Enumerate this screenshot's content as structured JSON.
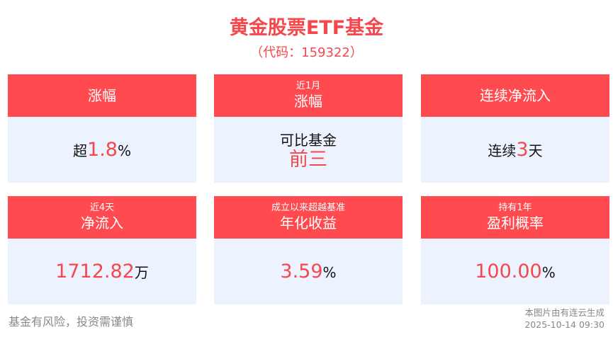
{
  "title": "黄金股票ETF基金",
  "code": "（代码：159322）",
  "cards": [
    {
      "sub": "",
      "main": "涨幅",
      "prefix": "超",
      "value": "1.8",
      "suffix": "%"
    },
    {
      "sub": "近1月",
      "main": "涨幅",
      "line1": "可比基金",
      "value": "前三"
    },
    {
      "sub": "",
      "main": "连续净流入",
      "prefix": "连续",
      "value": "3",
      "suffix": "天"
    },
    {
      "sub": "近4天",
      "main": "净流入",
      "prefix": "",
      "value": "1712.82",
      "suffix": "万"
    },
    {
      "sub": "成立以来超越基准",
      "main": "年化收益",
      "prefix": "",
      "value": "3.59",
      "suffix": "%"
    },
    {
      "sub": "持有1年",
      "main": "盈利概率",
      "prefix": "",
      "value": "100.00",
      "suffix": "%"
    }
  ],
  "footer": {
    "risk": "基金有风险，投资需谨慎",
    "source": "本图片由有连云生成",
    "timestamp": "2025-10-14 09:30"
  },
  "colors": {
    "accent": "#ff4b4f",
    "card_bg": "#edf3fe"
  }
}
